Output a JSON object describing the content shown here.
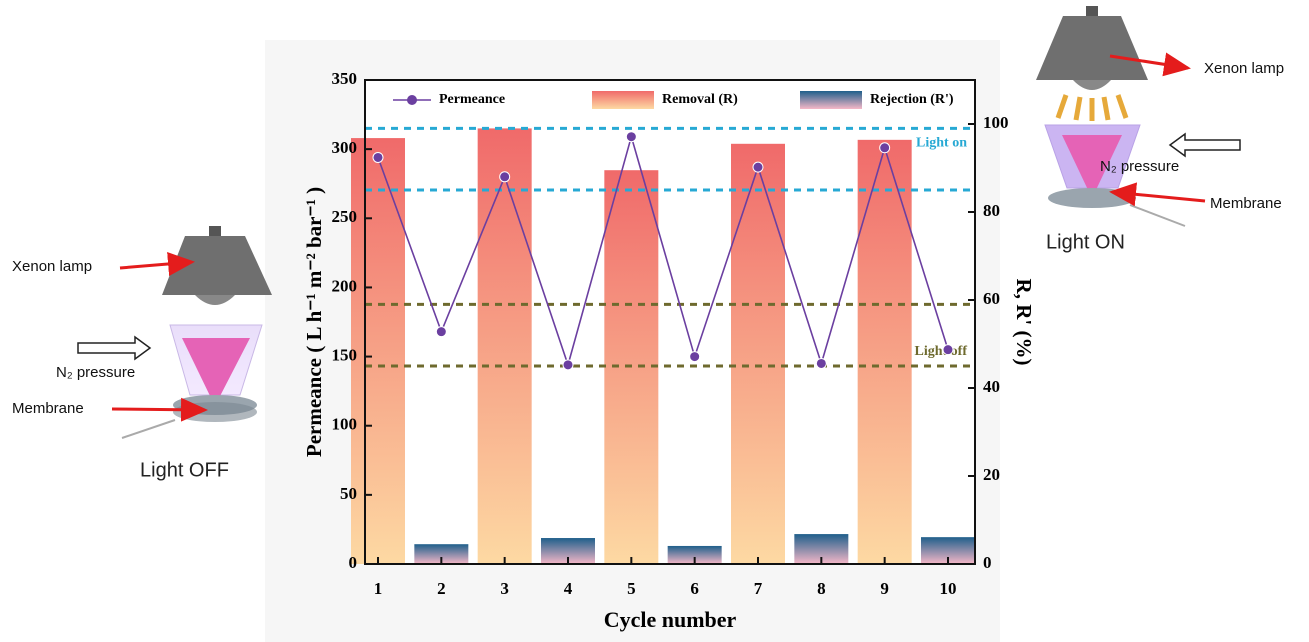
{
  "chart_data": {
    "type": "combo",
    "x_label": "Cycle number",
    "y_label": "Permeance ( L h⁻¹ m⁻² bar⁻¹ )",
    "y2_label": "R, R' (%)",
    "categories": [
      "1",
      "2",
      "3",
      "4",
      "5",
      "6",
      "7",
      "8",
      "9",
      "10"
    ],
    "ylim": [
      0,
      350
    ],
    "yticks": [
      0,
      50,
      100,
      150,
      200,
      250,
      300,
      350
    ],
    "y2lim": [
      0,
      110
    ],
    "y2ticks": [
      0,
      20,
      40,
      60,
      80,
      100
    ],
    "series": [
      {
        "name": "Permeance",
        "type": "line",
        "color": "#6b3fa0",
        "values": [
          294,
          168,
          280,
          144,
          309,
          150,
          287,
          145,
          301,
          155
        ]
      },
      {
        "name": "Removal (R)",
        "type": "bar",
        "axis": "y2",
        "colors": [
          "#f06a6a",
          "#fdd9a3"
        ],
        "values": [
          96.8,
          null,
          99,
          null,
          89.5,
          null,
          95.5,
          null,
          96.4,
          null
        ]
      },
      {
        "name": "Rejection (R')",
        "type": "bar",
        "axis": "y2",
        "colors": [
          "#1f5f8b",
          "#f6b8c8"
        ],
        "values": [
          null,
          4.5,
          null,
          5.9,
          null,
          4.1,
          null,
          6.8,
          null,
          6.1
        ]
      }
    ],
    "reference_lines": [
      {
        "label": "Light on",
        "values": [
          99,
          85
        ],
        "color": "#27a9d4",
        "axis": "y2"
      },
      {
        "label": "Light off",
        "values": [
          59,
          45
        ],
        "color": "#6e6a2e",
        "axis": "y2"
      }
    ]
  },
  "illustrations": {
    "left": {
      "lamp": "Xenon lamp",
      "pressure": "N₂ pressure",
      "membrane": "Membrane",
      "state": "Light OFF"
    },
    "right": {
      "lamp": "Xenon lamp",
      "pressure": "N₂ pressure",
      "membrane": "Membrane",
      "state": "Light ON"
    }
  }
}
